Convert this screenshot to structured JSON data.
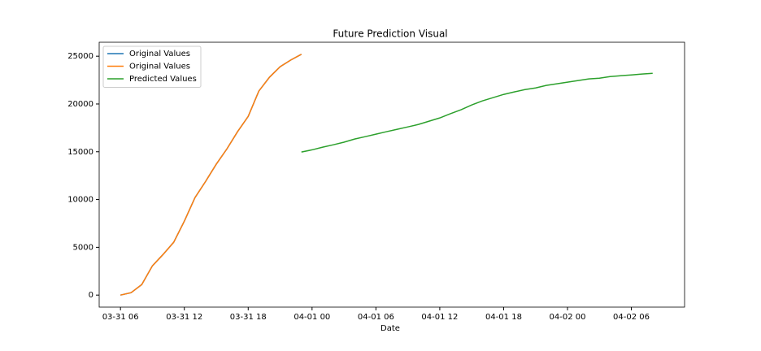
{
  "chart_data": {
    "type": "line",
    "title": "Future Prediction Visual",
    "x_label": "Date",
    "legend": "upper left",
    "grid": false,
    "xlim": [
      "03-31 04",
      "04-02 11"
    ],
    "xticks": [
      "03-31 06",
      "03-31 12",
      "03-31 18",
      "04-01 00",
      "04-01 06",
      "04-01 12",
      "04-01 18",
      "04-02 00",
      "04-02 06"
    ],
    "ylim": [
      -1260,
      26460
    ],
    "yticks": [
      0,
      5000,
      10000,
      15000,
      20000,
      25000
    ],
    "series": [
      {
        "name": "Original Values",
        "color": "#1f77b4",
        "x": [
          "03-31 06",
          "03-31 07",
          "03-31 08",
          "03-31 09",
          "03-31 10",
          "03-31 11",
          "03-31 12",
          "03-31 13",
          "03-31 14",
          "03-31 15",
          "03-31 16",
          "03-31 17",
          "03-31 18",
          "03-31 19",
          "03-31 20",
          "03-31 21",
          "03-31 22",
          "03-31 23"
        ],
        "values": [
          0,
          250,
          1100,
          3060,
          4250,
          5530,
          7740,
          10200,
          11900,
          13700,
          15300,
          17100,
          18700,
          21350,
          22800,
          23900,
          24600,
          25200
        ]
      },
      {
        "name": "Original Values",
        "color": "#ff7f0e",
        "x": [
          "03-31 06",
          "03-31 07",
          "03-31 08",
          "03-31 09",
          "03-31 10",
          "03-31 11",
          "03-31 12",
          "03-31 13",
          "03-31 14",
          "03-31 15",
          "03-31 16",
          "03-31 17",
          "03-31 18",
          "03-31 19",
          "03-31 20",
          "03-31 21",
          "03-31 22",
          "03-31 23"
        ],
        "values": [
          0,
          250,
          1100,
          3060,
          4250,
          5530,
          7740,
          10200,
          11900,
          13700,
          15300,
          17100,
          18700,
          21350,
          22800,
          23900,
          24600,
          25200
        ]
      },
      {
        "name": "Predicted Values",
        "color": "#2ca02c",
        "x": [
          "03-31 23",
          "04-01 00",
          "04-01 01",
          "04-01 02",
          "04-01 03",
          "04-01 04",
          "04-01 05",
          "04-01 06",
          "04-01 07",
          "04-01 08",
          "04-01 09",
          "04-01 10",
          "04-01 11",
          "04-01 12",
          "04-01 13",
          "04-01 14",
          "04-01 15",
          "04-01 16",
          "04-01 17",
          "04-01 18",
          "04-01 19",
          "04-01 20",
          "04-01 21",
          "04-01 22",
          "04-01 23",
          "04-02 00",
          "04-02 01",
          "04-02 02",
          "04-02 03",
          "04-02 04",
          "04-02 05",
          "04-02 06",
          "04-02 07",
          "04-02 08"
        ],
        "values": [
          14970,
          15200,
          15480,
          15730,
          16000,
          16330,
          16580,
          16840,
          17100,
          17350,
          17600,
          17860,
          18200,
          18540,
          18980,
          19400,
          19900,
          20320,
          20660,
          21000,
          21260,
          21510,
          21680,
          21940,
          22110,
          22280,
          22450,
          22620,
          22700,
          22870,
          22960,
          23040,
          23130,
          23210
        ]
      }
    ]
  }
}
